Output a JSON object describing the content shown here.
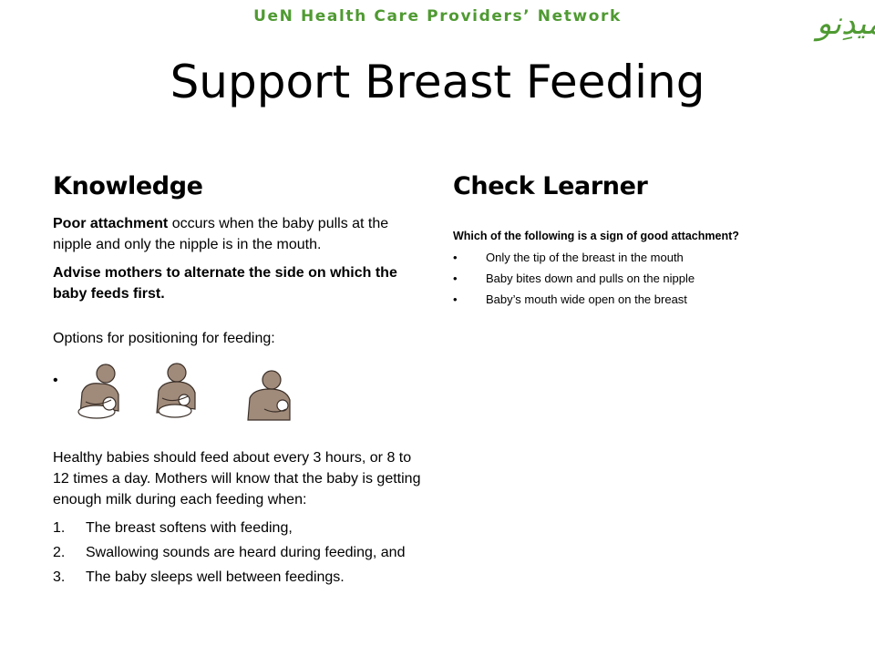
{
  "header": {
    "network": "UeN Health Care Providers’ Network",
    "logo_text": "اُمیدِنو"
  },
  "title": "Support Breast Feeding",
  "knowledge": {
    "heading": "Knowledge",
    "poor_attachment_bold": "Poor attachment",
    "poor_attachment_rest": " occurs when the baby pulls at the nipple and only the nipple is in the mouth.",
    "advise": "Advise mothers to alternate the side on which the baby feeds first.",
    "options_intro": "Options for positioning for feeding:",
    "bullet": "•",
    "healthy": "Healthy babies should feed about every 3 hours, or 8 to 12 times a day. Mothers will know that the baby is getting enough milk during each feeding when:",
    "criteria": [
      {
        "num": "1.",
        "text": "The breast softens with feeding,"
      },
      {
        "num": "2.",
        "text": " Swallowing sounds are heard during feeding, and"
      },
      {
        "num": "3.",
        "text": "The baby sleeps well between feedings."
      }
    ]
  },
  "check": {
    "heading": "Check Learner",
    "question": "Which of the following is a sign of good attachment?",
    "bullet": "•",
    "options": [
      "Only the tip of the breast in the mouth",
      "Baby bites down and pulls on the nipple",
      "Baby’s mouth wide open on the breast"
    ]
  },
  "colors": {
    "brand_green": "#4f9a32",
    "skin": "#a08a7a",
    "outline": "#3a2f28"
  },
  "icons": [
    "mother-cradle-hold-icon",
    "mother-cross-cradle-hold-icon",
    "mother-side-hold-icon"
  ]
}
